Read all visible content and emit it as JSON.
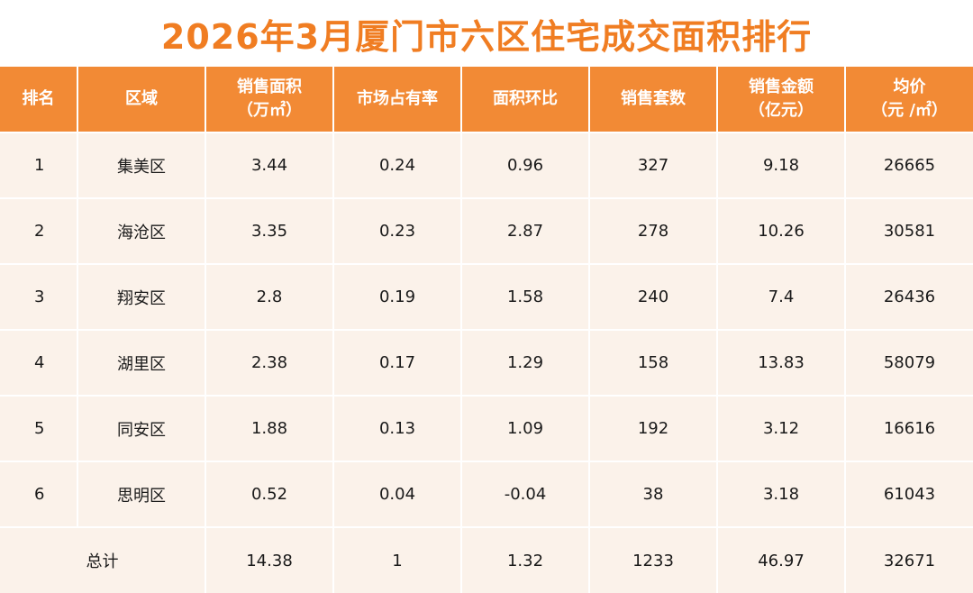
{
  "title": "2026年3月厦门市六区住宅成交面积排行",
  "headers": [
    {
      "line1": "排名",
      "line2": ""
    },
    {
      "line1": "区域",
      "line2": ""
    },
    {
      "line1": "销售面积",
      "line2": "（万㎡）"
    },
    {
      "line1": "市场占有率",
      "line2": ""
    },
    {
      "line1": "面积环比",
      "line2": ""
    },
    {
      "line1": "销售套数",
      "line2": ""
    },
    {
      "line1": "销售金额",
      "line2": "（亿元）"
    },
    {
      "line1": "均价",
      "line2": "（元 /㎡）"
    }
  ],
  "rows": [
    {
      "rank": "1",
      "district": "集美区",
      "area": "3.44",
      "share": "0.24",
      "mom": "0.96",
      "units": "327",
      "amount": "9.18",
      "avg_price": "26665"
    },
    {
      "rank": "2",
      "district": "海沧区",
      "area": "3.35",
      "share": "0.23",
      "mom": "2.87",
      "units": "278",
      "amount": "10.26",
      "avg_price": "30581"
    },
    {
      "rank": "3",
      "district": "翔安区",
      "area": "2.8",
      "share": "0.19",
      "mom": "1.58",
      "units": "240",
      "amount": "7.4",
      "avg_price": "26436"
    },
    {
      "rank": "4",
      "district": "湖里区",
      "area": "2.38",
      "share": "0.17",
      "mom": "1.29",
      "units": "158",
      "amount": "13.83",
      "avg_price": "58079"
    },
    {
      "rank": "5",
      "district": "同安区",
      "area": "1.88",
      "share": "0.13",
      "mom": "1.09",
      "units": "192",
      "amount": "3.12",
      "avg_price": "16616"
    },
    {
      "rank": "6",
      "district": "思明区",
      "area": "0.52",
      "share": "0.04",
      "mom": "-0.04",
      "units": "38",
      "amount": "3.18",
      "avg_price": "61043"
    }
  ],
  "total": {
    "label": "总计",
    "area": "14.38",
    "share": "1",
    "mom": "1.32",
    "units": "1233",
    "amount": "46.97",
    "avg_price": "32671"
  }
}
